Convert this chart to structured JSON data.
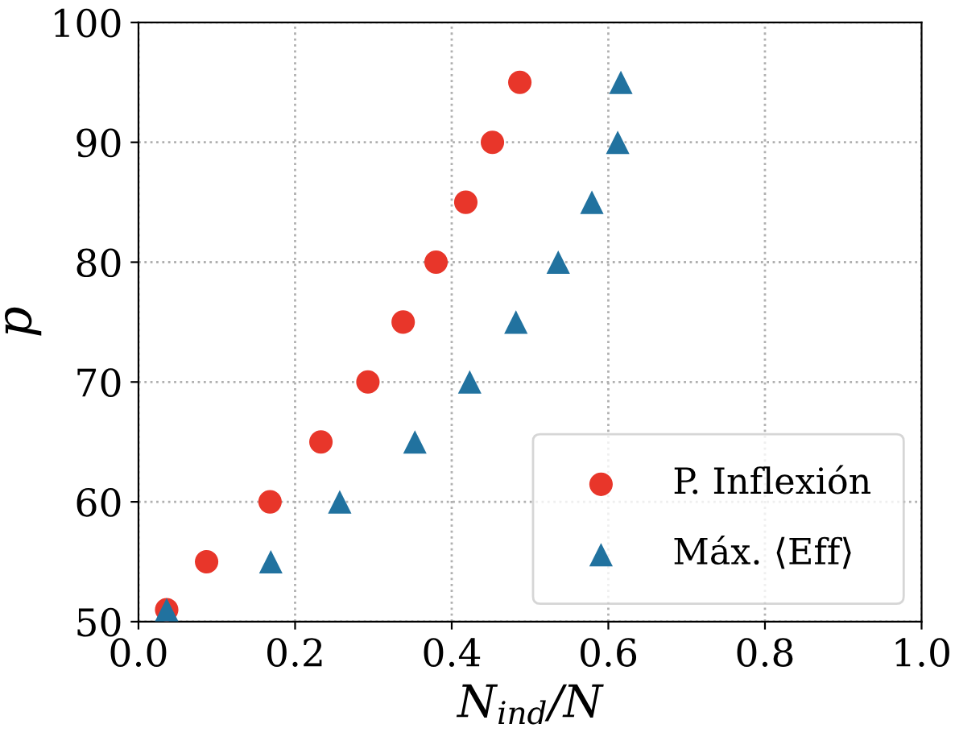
{
  "chart_data": {
    "type": "scatter",
    "xlabel": "N$_{ind}$/N",
    "ylabel": "p",
    "xlim": [
      0.0,
      1.0
    ],
    "ylim": [
      50,
      100
    ],
    "xticks": [
      {
        "value": 0,
        "label": "0.0"
      },
      0.2,
      0.4,
      0.6,
      0.8,
      {
        "value": 1,
        "label": "1.0"
      }
    ],
    "yticks": [
      50,
      60,
      70,
      80,
      90,
      100
    ],
    "grid": true,
    "legend": "bottom right",
    "series": [
      {
        "name": "P. Inflexión",
        "color": "#e8362a",
        "marker": "circle",
        "x": [
          0.036,
          0.087,
          0.168,
          0.233,
          0.293,
          0.338,
          0.38,
          0.418,
          0.452,
          0.487
        ],
        "values": [
          51,
          55,
          60,
          65,
          70,
          75,
          80,
          85,
          90,
          95
        ]
      },
      {
        "name": "Máx. ⟨Eff⟩",
        "color": "#21729f",
        "marker": "triangle",
        "x": [
          0.036,
          0.169,
          0.257,
          0.353,
          0.423,
          0.482,
          0.536,
          0.579,
          0.612,
          0.616
        ],
        "values": [
          51,
          55,
          60,
          65,
          70,
          75,
          80,
          85,
          90,
          95
        ]
      }
    ]
  }
}
